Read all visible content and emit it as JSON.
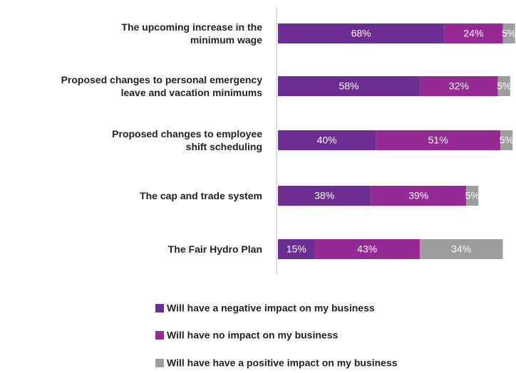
{
  "chart_data": {
    "type": "stacked-bar",
    "orientation": "horizontal",
    "categories": [
      "The upcoming increase in the\nminimum wage",
      "Proposed changes to personal emergency\nleave and vacation minimums",
      "Proposed changes to employee\nshift scheduling",
      "The cap and trade system",
      "The Fair Hydro Plan"
    ],
    "series": [
      {
        "name": "Will have a negative impact on my business",
        "color": "#6b2d91",
        "values": [
          68,
          58,
          40,
          38,
          15
        ],
        "value_labels": [
          "68%",
          "58%",
          "40%",
          "38%",
          "15%"
        ]
      },
      {
        "name": "Will have no impact on my business",
        "color": "#962a94",
        "values": [
          24,
          32,
          51,
          39,
          43
        ],
        "value_labels": [
          "24%",
          "32%",
          "51%",
          "39%",
          "43%"
        ]
      },
      {
        "name": "Will have have a positive impact on my business",
        "color": "#9d9d9d",
        "values": [
          5,
          5,
          5,
          5,
          34
        ],
        "value_labels": [
          "5%",
          "5%",
          "5%",
          "5%",
          "34%"
        ]
      }
    ],
    "xlim": [
      0,
      100
    ]
  }
}
